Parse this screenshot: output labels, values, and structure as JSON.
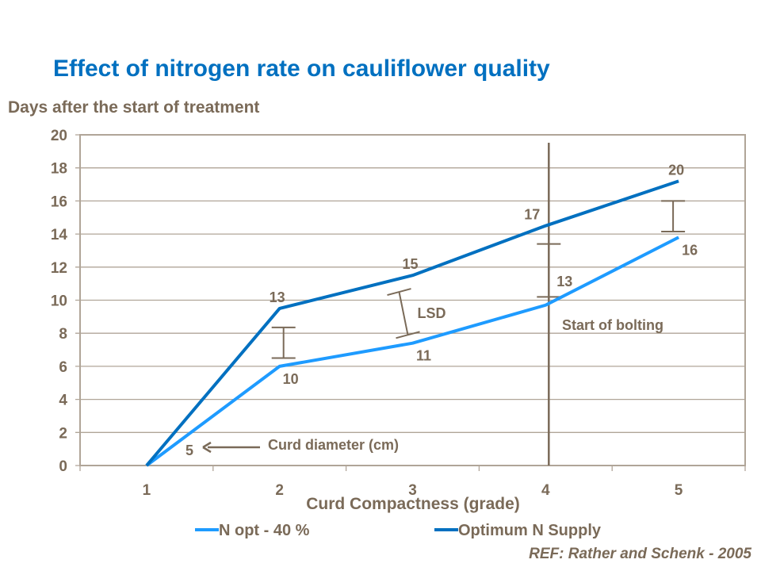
{
  "chart_data": {
    "type": "line",
    "title": "Effect of nitrogen rate on cauliflower quality",
    "ylabel": "Days after the start of treatment",
    "xlabel": "Curd Compactness (grade)",
    "categories": [
      "1",
      "2",
      "3",
      "4",
      "5"
    ],
    "ylim": [
      0,
      20
    ],
    "yticks": [
      "0",
      "2",
      "4",
      "6",
      "8",
      "10",
      "12",
      "14",
      "16",
      "18",
      "20"
    ],
    "grid": true,
    "legend_placement": "bottom",
    "series": [
      {
        "name": "N opt - 40 %",
        "color": "#1E9BFF",
        "values": [
          0,
          6.0,
          7.4,
          9.7,
          13.8
        ],
        "point_labels": [
          "5",
          "10",
          "11",
          "13",
          "16"
        ]
      },
      {
        "name": "Optimum N Supply",
        "color": "#0070C0",
        "values": [
          0,
          9.5,
          11.5,
          14.5,
          17.2
        ],
        "point_labels": [
          "",
          "13",
          "15",
          "17",
          "20"
        ]
      }
    ],
    "lsd_bars": [
      {
        "category": "2",
        "low": 6.5,
        "high": 8.35
      },
      {
        "category": "3",
        "low": 7.9,
        "high": 10.5
      },
      {
        "category": "4",
        "low": 10.2,
        "high": 13.4
      },
      {
        "category": "5",
        "low": 14.15,
        "high": 16.0
      }
    ],
    "annotations": {
      "lsd": "LSD",
      "curd_diameter": "Curd diameter (cm)",
      "bolting": "Start of bolting"
    },
    "bolting_at_category": "4"
  },
  "reference": "REF: Rather and Schenk - 2005",
  "colors": {
    "axis": "#B0A598",
    "text": "#7A6A58",
    "title": "#0070C0"
  }
}
